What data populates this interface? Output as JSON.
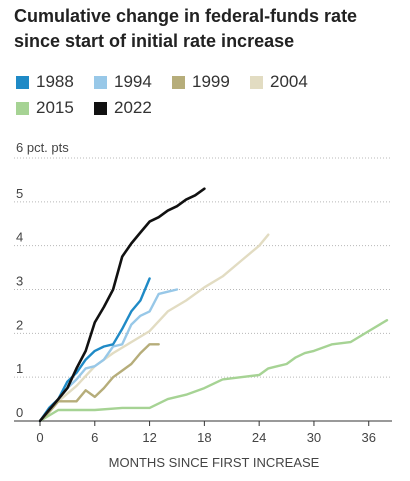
{
  "chart_data": {
    "type": "line",
    "title": "Cumulative change in federal-funds rate since start of initial rate increase",
    "xlabel": "MONTHS SINCE FIRST INCREASE",
    "ylabel": "",
    "y_unit_label": "6 pct. pts",
    "xlim": [
      0,
      38
    ],
    "ylim": [
      0,
      6
    ],
    "x_ticks": [
      "0",
      "6",
      "12",
      "18",
      "24",
      "30",
      "36"
    ],
    "y_ticks": [
      "0",
      "1",
      "2",
      "3",
      "4",
      "5"
    ],
    "grid": true,
    "legend_position": "top-left",
    "series": [
      {
        "name": "1988",
        "color": "#1f8ac6",
        "x": [
          0,
          1,
          2,
          3,
          4,
          5,
          6,
          7,
          8,
          9,
          10,
          11,
          12
        ],
        "y": [
          0,
          0.3,
          0.5,
          0.9,
          1.1,
          1.4,
          1.6,
          1.7,
          1.75,
          2.1,
          2.5,
          2.75,
          3.25
        ]
      },
      {
        "name": "1994",
        "color": "#98c8e8",
        "x": [
          0,
          1,
          2,
          3,
          4,
          5,
          6,
          7,
          8,
          9,
          10,
          11,
          12,
          13,
          14,
          15
        ],
        "y": [
          0,
          0.25,
          0.5,
          0.75,
          0.95,
          1.2,
          1.25,
          1.4,
          1.7,
          1.75,
          2.2,
          2.4,
          2.5,
          2.9,
          2.95,
          3.0
        ]
      },
      {
        "name": "1999",
        "color": "#b6ad7a",
        "x": [
          0,
          1,
          2,
          3,
          4,
          5,
          6,
          7,
          8,
          9,
          10,
          11,
          12,
          13
        ],
        "y": [
          0,
          0.2,
          0.45,
          0.45,
          0.45,
          0.7,
          0.55,
          0.75,
          1.0,
          1.15,
          1.3,
          1.55,
          1.75,
          1.75
        ]
      },
      {
        "name": "2004",
        "color": "#e2dcc2",
        "x": [
          0,
          2,
          4,
          6,
          8,
          10,
          12,
          14,
          16,
          18,
          20,
          22,
          24,
          25
        ],
        "y": [
          0,
          0.45,
          0.8,
          1.25,
          1.55,
          1.8,
          2.05,
          2.5,
          2.75,
          3.05,
          3.3,
          3.65,
          4.0,
          4.25
        ]
      },
      {
        "name": "2015",
        "color": "#a6d394",
        "x": [
          0,
          2,
          6,
          9,
          12,
          14,
          16,
          18,
          20,
          22,
          24,
          25,
          26,
          27,
          28,
          29,
          30,
          32,
          34,
          36,
          38
        ],
        "y": [
          0,
          0.25,
          0.25,
          0.3,
          0.3,
          0.5,
          0.6,
          0.75,
          0.95,
          1.0,
          1.05,
          1.2,
          1.25,
          1.3,
          1.45,
          1.55,
          1.6,
          1.75,
          1.8,
          2.05,
          2.3
        ]
      },
      {
        "name": "2022",
        "color": "#111111",
        "x": [
          0,
          1,
          2,
          3,
          4,
          5,
          6,
          7,
          8,
          9,
          10,
          11,
          12,
          13,
          14,
          15,
          16,
          17,
          18
        ],
        "y": [
          0,
          0.25,
          0.5,
          0.75,
          1.2,
          1.6,
          2.25,
          2.6,
          3.0,
          3.75,
          4.05,
          4.3,
          4.55,
          4.65,
          4.8,
          4.9,
          5.05,
          5.15,
          5.3
        ]
      }
    ]
  }
}
